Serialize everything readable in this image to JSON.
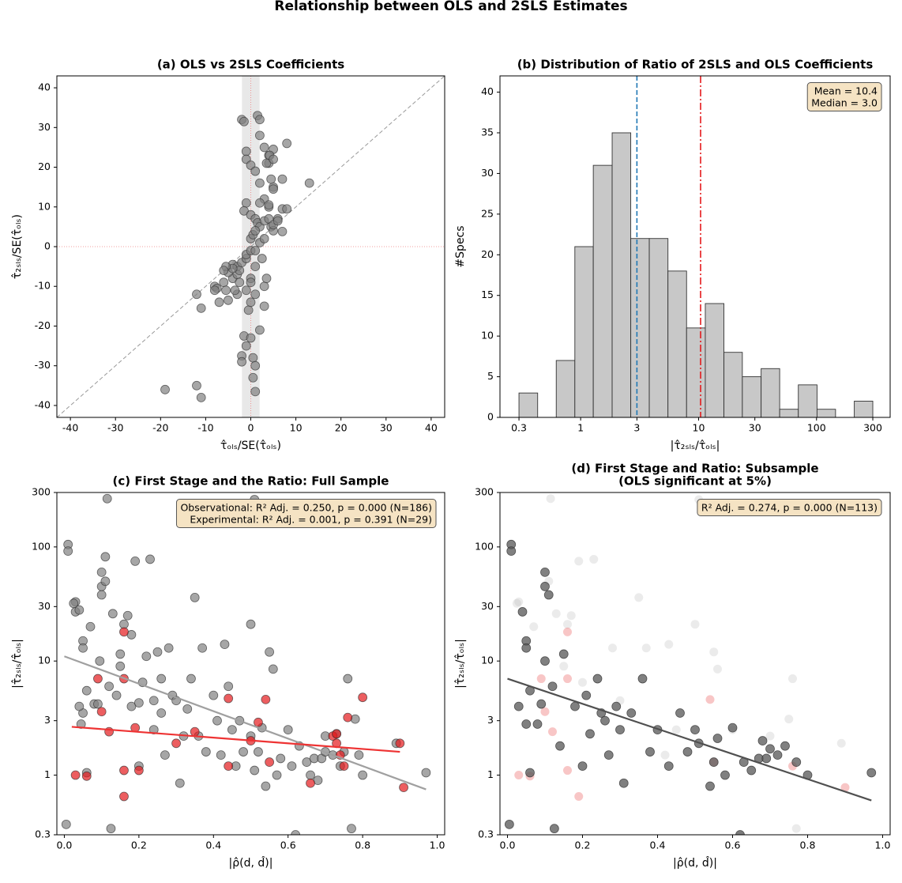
{
  "title": "Relationship between OLS and 2SLS Estimates",
  "chart_data": [
    {
      "type": "scatter",
      "title": "(a) OLS vs 2SLS Coefficients",
      "x_label": "τ̂ₒₗₛ/SE(τ̂ₒₗₛ)",
      "y_label": "τ̂₂ₛₗₛ/SE(τ̂ₒₗₛ)",
      "xlim": [
        -43,
        43
      ],
      "ylim": [
        -43,
        43
      ],
      "xticks": [
        -40,
        -30,
        -20,
        -10,
        0,
        10,
        20,
        30,
        40
      ],
      "yticks": [
        -40,
        -30,
        -20,
        -10,
        0,
        10,
        20,
        30,
        40
      ],
      "shade_x": [
        -1.96,
        1.96
      ],
      "hline": 0,
      "vline": 0,
      "diagonal": true,
      "series": [
        {
          "color": "#808080",
          "opacity": 0.7,
          "x": [
            -19,
            -12,
            -11,
            -12,
            -11,
            -8,
            -7.5,
            -6,
            -5.5,
            -5,
            -4,
            -5,
            -4,
            -3,
            -3,
            -2.5,
            -2,
            -1,
            -1,
            0,
            -2,
            -2,
            -1,
            -1.5,
            0,
            0.5,
            1,
            0.5,
            1,
            2,
            3,
            3,
            1,
            -0.5,
            0,
            -1,
            0,
            1,
            -2,
            -1.5,
            1.5,
            2,
            2,
            3,
            4,
            5,
            4,
            -1,
            -1,
            0,
            1,
            2,
            3,
            2,
            -1,
            -1.5,
            0,
            1,
            1.5,
            2,
            3,
            4,
            4.5,
            5,
            6,
            7,
            8,
            7,
            5,
            5,
            4.5,
            4,
            4,
            13,
            8,
            7,
            -4,
            -5.5,
            -6,
            -8,
            -3,
            -2.5,
            0,
            0.5,
            1,
            2,
            3,
            2.5,
            3.5,
            1,
            0,
            -7,
            -3.5,
            5,
            6,
            3.5,
            4.2,
            5
          ],
          "values": [
            -36,
            -35,
            -38,
            -12,
            -15.5,
            -10,
            -10.5,
            -9,
            -11,
            -13.5,
            -8,
            -6.5,
            -4.5,
            -5,
            -7,
            -6,
            -4,
            -3,
            -2,
            -1,
            -27.5,
            -29,
            -25,
            -22.5,
            -23,
            -28,
            -30,
            -33,
            -36.5,
            -21,
            -15,
            -10,
            -12,
            -16,
            -14,
            -11,
            -8,
            -5,
            32,
            31.5,
            33,
            32,
            28,
            25,
            23,
            24.5,
            21,
            24,
            22,
            20.5,
            19,
            16,
            12,
            11,
            11,
            9,
            8,
            7,
            6,
            5,
            6.5,
            7,
            5,
            4,
            7,
            9.5,
            26,
            17,
            15,
            14.5,
            17,
            10,
            10.5,
            16,
            9.5,
            3.8,
            -5.5,
            -5,
            -6,
            -11,
            -12,
            -9,
            2,
            3,
            4,
            1,
            2,
            -3,
            -8,
            -1,
            -9,
            -14,
            -11,
            5.5,
            6.5,
            21,
            23,
            22
          ]
        }
      ]
    },
    {
      "type": "histogram",
      "title": "(b) Distribution of Ratio of 2SLS and OLS Coefficients",
      "x_label": "|τ̂₂ₛₗₛ/τ̂ₒₗₛ|",
      "y_label": "#Specs",
      "xscale": "log",
      "xlim": [
        0.207,
        421
      ],
      "ylim": [
        0,
        42
      ],
      "xticks": [
        0.3,
        1,
        3,
        10,
        30,
        100,
        300
      ],
      "yticks": [
        0,
        5,
        10,
        15,
        20,
        25,
        30,
        35,
        40
      ],
      "color": "#c8c8c8",
      "bins": [
        0.3,
        0.432,
        0.621,
        0.893,
        1.28,
        1.85,
        2.66,
        3.82,
        5.5,
        7.91,
        11.4,
        16.4,
        23.5,
        33.9,
        48.7,
        70.1,
        101,
        145,
        209,
        300
      ],
      "values": [
        3,
        0,
        7,
        21,
        31,
        35,
        22,
        22,
        18,
        11,
        14,
        8,
        5,
        6,
        1,
        4,
        1,
        0,
        2
      ],
      "vlines": [
        {
          "value": 3.0,
          "color": "#1f77b4",
          "dash": "6,3"
        },
        {
          "value": 10.4,
          "color": "#e41a1c",
          "dash": "9,3,2,3"
        }
      ],
      "annotation": [
        "Mean = 10.4",
        "Median = 3.0"
      ]
    },
    {
      "type": "scatter",
      "title": "(c) First Stage and the Ratio: Full Sample",
      "x_label": "|ρ̂(d, d̂)|",
      "y_label": "|τ̂₂ₛₗₛ/τ̂ₒₗₛ|",
      "yscale": "log",
      "xlim": [
        -0.02,
        1.02
      ],
      "ylim": [
        0.3,
        300
      ],
      "xticks": [
        {
          "value": 0,
          "label": "0.0"
        },
        0.2,
        0.4,
        0.6,
        0.8,
        {
          "value": 1,
          "label": "1.0"
        }
      ],
      "yticks": [
        0.3,
        1,
        3,
        10,
        30,
        100,
        300
      ],
      "series": [
        {
          "color": "#808080",
          "opacity": 0.7,
          "x": [
            0.01,
            0.01,
            0.005,
            0.03,
            0.03,
            0.04,
            0.025,
            0.05,
            0.05,
            0.06,
            0.05,
            0.06,
            0.04,
            0.045,
            0.07,
            0.08,
            0.09,
            0.1,
            0.1,
            0.1,
            0.095,
            0.11,
            0.11,
            0.115,
            0.12,
            0.125,
            0.13,
            0.14,
            0.15,
            0.16,
            0.17,
            0.18,
            0.19,
            0.2,
            0.21,
            0.22,
            0.23,
            0.24,
            0.24,
            0.25,
            0.26,
            0.27,
            0.28,
            0.29,
            0.3,
            0.31,
            0.32,
            0.33,
            0.35,
            0.34,
            0.37,
            0.38,
            0.4,
            0.41,
            0.43,
            0.44,
            0.45,
            0.46,
            0.47,
            0.48,
            0.5,
            0.5,
            0.51,
            0.52,
            0.53,
            0.54,
            0.55,
            0.56,
            0.57,
            0.58,
            0.6,
            0.61,
            0.62,
            0.63,
            0.65,
            0.66,
            0.67,
            0.68,
            0.69,
            0.7,
            0.7,
            0.72,
            0.73,
            0.74,
            0.75,
            0.76,
            0.77,
            0.78,
            0.79,
            0.8,
            0.89,
            0.97,
            0.51,
            0.2,
            0.36,
            0.42,
            0.15,
            0.18,
            0.26
          ],
          "values": [
            105,
            92,
            0.37,
            33,
            27,
            28,
            32,
            15,
            13,
            5.5,
            3.5,
            1.05,
            4,
            2.8,
            20,
            4.2,
            4.2,
            60,
            45,
            38,
            10,
            50,
            82,
            265,
            6,
            0.34,
            26,
            5,
            11.5,
            21,
            25,
            4,
            75,
            1.2,
            6.5,
            11,
            78,
            4.5,
            2.5,
            12,
            3.5,
            1.5,
            13,
            5,
            4.5,
            0.85,
            2.2,
            3.8,
            36,
            7,
            13,
            1.6,
            5,
            3,
            14,
            6,
            2.5,
            1.2,
            3,
            1.6,
            21,
            2.2,
            1.1,
            1.6,
            2.6,
            0.8,
            12,
            8.5,
            1,
            1.4,
            2.5,
            1.2,
            0.3,
            1.8,
            1.3,
            1,
            1.4,
            0.9,
            1.4,
            2.2,
            1.6,
            1.5,
            2.3,
            1.2,
            1.6,
            7,
            0.34,
            3.1,
            1.5,
            1,
            1.9,
            1.05,
            260,
            4.3,
            2.2,
            1.5,
            9,
            17,
            7
          ]
        },
        {
          "color": "#e41a1c",
          "opacity": 0.7,
          "x": [
            0.03,
            0.06,
            0.09,
            0.1,
            0.12,
            0.16,
            0.16,
            0.16,
            0.16,
            0.19,
            0.2,
            0.44,
            0.44,
            0.52,
            0.54,
            0.55,
            0.66,
            0.72,
            0.73,
            0.74,
            0.75,
            0.76,
            0.8,
            0.9,
            0.91,
            0.73,
            0.3,
            0.5,
            0.35
          ],
          "values": [
            1,
            0.98,
            7,
            3.6,
            2.4,
            18,
            7,
            1.1,
            0.65,
            2.6,
            1.1,
            4.7,
            1.2,
            2.9,
            4.6,
            1.3,
            0.85,
            2.2,
            2.3,
            1.5,
            1.2,
            3.2,
            4.8,
            1.9,
            0.78,
            1.9,
            1.9,
            2,
            2.4
          ]
        }
      ],
      "lines": [
        {
          "color": "#a0a0a0",
          "x": [
            0,
            0.97
          ],
          "values": [
            11,
            0.75
          ]
        },
        {
          "color": "#ee3333",
          "x": [
            0.02,
            0.9
          ],
          "values": [
            2.65,
            1.6
          ]
        }
      ],
      "annotation": [
        "Observational:  R² Adj. = 0.250, p = 0.000 (N=186)",
        "Experimental:  R² Adj. = 0.001, p = 0.391 (N=29)"
      ]
    },
    {
      "type": "scatter",
      "title": [
        "(d) First Stage and Ratio: Subsample",
        "(OLS significant at 5%)"
      ],
      "x_label": "|ρ̂(d, d̂)|",
      "y_label": "|τ̂₂ₛₗₛ/τ̂ₒₗₛ|",
      "yscale": "log",
      "xlim": [
        -0.02,
        1.02
      ],
      "ylim": [
        0.3,
        300
      ],
      "xticks": [
        {
          "value": 0,
          "label": "0.0"
        },
        0.2,
        0.4,
        0.6,
        0.8,
        {
          "value": 1,
          "label": "1.0"
        }
      ],
      "yticks": [
        0.3,
        1,
        3,
        10,
        30,
        100,
        300
      ],
      "series": [
        {
          "color": "#b0b0b0",
          "opacity": 0.25,
          "stroke": "none",
          "x": [
            0.03,
            0.025,
            0.07,
            0.11,
            0.115,
            0.13,
            0.16,
            0.17,
            0.19,
            0.23,
            0.28,
            0.35,
            0.37,
            0.43,
            0.5,
            0.51,
            0.55,
            0.56,
            0.62,
            0.76,
            0.77,
            0.89,
            0.2,
            0.3,
            0.45,
            0.6,
            0.7,
            0.15,
            0.42,
            0.75
          ],
          "values": [
            33,
            32,
            20,
            50,
            265,
            26,
            21,
            25,
            75,
            78,
            13,
            36,
            13,
            14,
            21,
            260,
            12,
            8.5,
            0.3,
            7,
            0.34,
            1.9,
            6.5,
            4.5,
            2.5,
            2.5,
            2.2,
            9,
            1.5,
            3.1
          ]
        },
        {
          "color": "#e41a1c",
          "opacity": 0.25,
          "stroke": "none",
          "x": [
            0.03,
            0.06,
            0.09,
            0.1,
            0.12,
            0.16,
            0.16,
            0.16,
            0.19,
            0.54,
            0.55,
            0.76,
            0.9
          ],
          "values": [
            1,
            0.98,
            7,
            3.6,
            2.4,
            18,
            7,
            1.1,
            0.65,
            4.6,
            1.3,
            1.2,
            0.78
          ]
        },
        {
          "color": "#555555",
          "opacity": 0.75,
          "x": [
            0.01,
            0.01,
            0.005,
            0.03,
            0.04,
            0.05,
            0.05,
            0.06,
            0.05,
            0.06,
            0.08,
            0.09,
            0.1,
            0.1,
            0.11,
            0.1,
            0.12,
            0.125,
            0.14,
            0.15,
            0.18,
            0.2,
            0.21,
            0.22,
            0.24,
            0.25,
            0.26,
            0.27,
            0.29,
            0.3,
            0.31,
            0.33,
            0.36,
            0.38,
            0.4,
            0.43,
            0.46,
            0.48,
            0.5,
            0.51,
            0.54,
            0.55,
            0.56,
            0.58,
            0.6,
            0.62,
            0.63,
            0.65,
            0.67,
            0.68,
            0.69,
            0.7,
            0.72,
            0.74,
            0.77,
            0.8,
            0.97
          ],
          "values": [
            105,
            92,
            0.37,
            4,
            27,
            15,
            13,
            5.5,
            2.8,
            1.05,
            2.8,
            4.2,
            60,
            45,
            38,
            10,
            6,
            0.34,
            1.8,
            11.5,
            4,
            1.2,
            5,
            2.3,
            7,
            3.5,
            3,
            1.5,
            4,
            2.5,
            0.85,
            3.5,
            7,
            1.6,
            2.5,
            1.2,
            3.5,
            1.6,
            2.5,
            1.9,
            0.8,
            1.3,
            2.1,
            1,
            2.6,
            0.3,
            1.3,
            1.1,
            1.4,
            2,
            1.4,
            1.7,
            1.5,
            1.8,
            1.3,
            1,
            1.05
          ]
        }
      ],
      "lines": [
        {
          "color": "#505050",
          "x": [
            0,
            0.97
          ],
          "values": [
            7,
            0.6
          ]
        }
      ],
      "annotation": [
        "R² Adj. = 0.274, p = 0.000 (N=113)"
      ]
    }
  ]
}
